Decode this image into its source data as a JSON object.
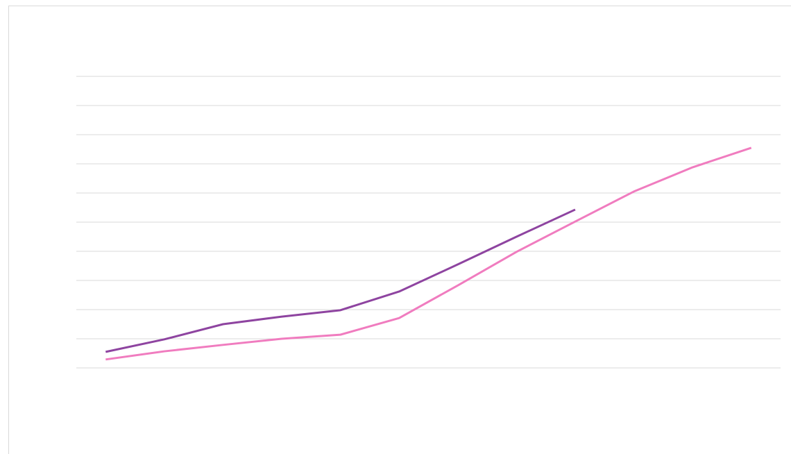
{
  "chart_data": {
    "type": "line",
    "categories": [
      null,
      null,
      null,
      null,
      null,
      null,
      null,
      null,
      null,
      null,
      null,
      null
    ],
    "series": [
      {
        "color": "#8e44a0",
        "values": [
          0.55,
          0.98,
          1.5,
          1.76,
          1.98,
          2.62,
          3.55,
          4.5,
          5.43,
          null,
          null,
          null
        ]
      },
      {
        "color": "#f07cbf",
        "values": [
          0.29,
          0.57,
          0.79,
          1.0,
          1.14,
          1.71,
          2.83,
          3.98,
          5.02,
          6.05,
          6.88,
          7.55
        ]
      }
    ],
    "ylim": [
      0,
      10
    ],
    "yticks": [
      0,
      1,
      2,
      3,
      4,
      5,
      6,
      7,
      8,
      9,
      10
    ],
    "grid": true
  }
}
